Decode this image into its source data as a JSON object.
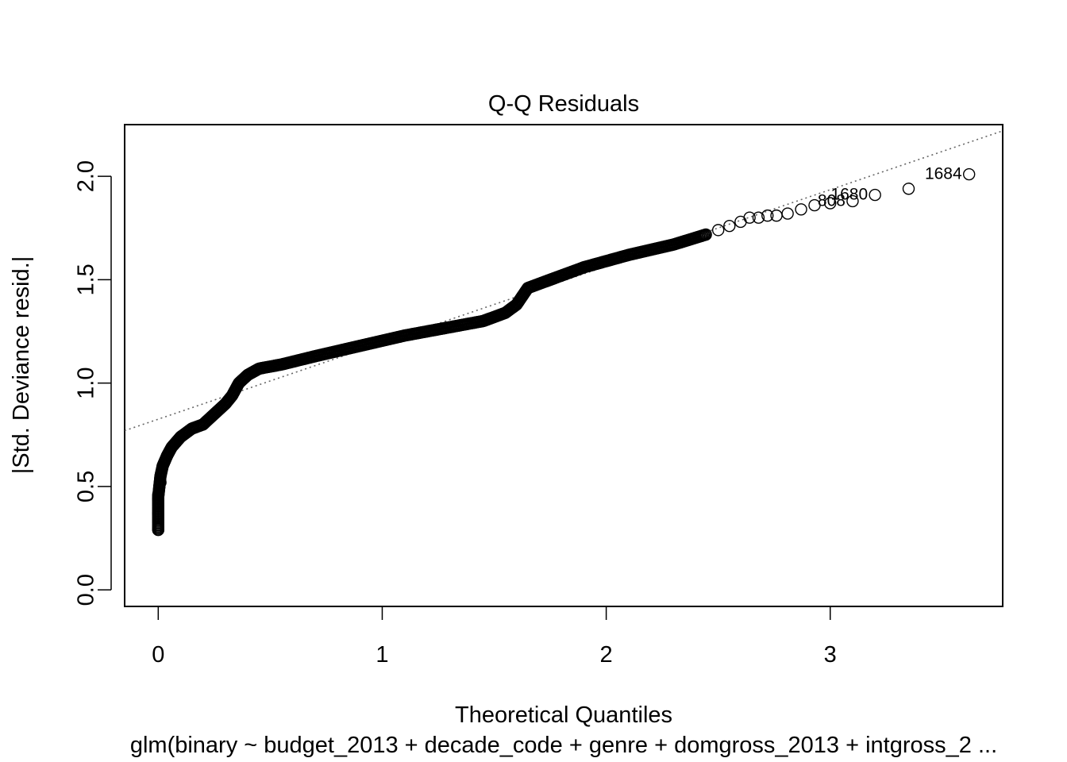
{
  "chart_data": {
    "type": "scatter",
    "title": "Q-Q Residuals",
    "xlabel": "Theoretical Quantiles",
    "ylabel": "|Std. Deviance resid.|",
    "subtitle": "glm(binary ~ budget_2013 + decade_code + genre + domgross_2013 + intgross_2 ...",
    "xlim": [
      -0.15,
      3.77
    ],
    "ylim": [
      -0.08,
      2.25
    ],
    "x_ticks": [
      0,
      1,
      2,
      3
    ],
    "y_ticks": [
      0.0,
      0.5,
      1.0,
      1.5,
      2.0
    ],
    "x_tick_labels": [
      "0",
      "1",
      "2",
      "3"
    ],
    "y_tick_labels": [
      "0.0",
      "0.5",
      "1.0",
      "1.5",
      "2.0"
    ],
    "grid": false,
    "reference_line": {
      "style": "dotted",
      "color": "#666666",
      "points": [
        [
          -0.15,
          0.77
        ],
        [
          3.77,
          2.22
        ]
      ]
    },
    "curve": [
      [
        0.0,
        0.29
      ],
      [
        0.0,
        0.37
      ],
      [
        0.0,
        0.45
      ],
      [
        0.005,
        0.5
      ],
      [
        0.01,
        0.55
      ],
      [
        0.02,
        0.6
      ],
      [
        0.04,
        0.65
      ],
      [
        0.06,
        0.69
      ],
      [
        0.1,
        0.74
      ],
      [
        0.15,
        0.78
      ],
      [
        0.2,
        0.8
      ],
      [
        0.25,
        0.85
      ],
      [
        0.3,
        0.9
      ],
      [
        0.33,
        0.94
      ],
      [
        0.36,
        1.0
      ],
      [
        0.4,
        1.04
      ],
      [
        0.45,
        1.07
      ],
      [
        0.55,
        1.09
      ],
      [
        0.7,
        1.13
      ],
      [
        0.9,
        1.18
      ],
      [
        1.1,
        1.23
      ],
      [
        1.3,
        1.27
      ],
      [
        1.45,
        1.3
      ],
      [
        1.55,
        1.34
      ],
      [
        1.6,
        1.38
      ],
      [
        1.65,
        1.46
      ],
      [
        1.75,
        1.5
      ],
      [
        1.9,
        1.56
      ],
      [
        2.1,
        1.62
      ],
      [
        2.3,
        1.67
      ],
      [
        2.45,
        1.72
      ]
    ],
    "points": [
      {
        "x": 0.0,
        "y": 0.29
      },
      {
        "x": 0.0,
        "y": 0.37
      },
      {
        "x": 0.0,
        "y": 0.44
      },
      {
        "x": 0.0,
        "y": 0.46
      },
      {
        "x": 0.005,
        "y": 0.5
      },
      {
        "x": 0.01,
        "y": 0.52
      },
      {
        "x": 2.5,
        "y": 1.74
      },
      {
        "x": 2.55,
        "y": 1.76
      },
      {
        "x": 2.6,
        "y": 1.78
      },
      {
        "x": 2.64,
        "y": 1.8
      },
      {
        "x": 2.68,
        "y": 1.8
      },
      {
        "x": 2.72,
        "y": 1.81
      },
      {
        "x": 2.76,
        "y": 1.81
      },
      {
        "x": 2.81,
        "y": 1.82
      },
      {
        "x": 2.87,
        "y": 1.84
      },
      {
        "x": 2.93,
        "y": 1.86
      },
      {
        "x": 3.0,
        "y": 1.87
      },
      {
        "x": 3.1,
        "y": 1.88,
        "label": "808"
      },
      {
        "x": 3.2,
        "y": 1.91,
        "label": "1680"
      },
      {
        "x": 3.35,
        "y": 1.94
      },
      {
        "x": 3.62,
        "y": 2.01,
        "label": "1684"
      }
    ]
  }
}
